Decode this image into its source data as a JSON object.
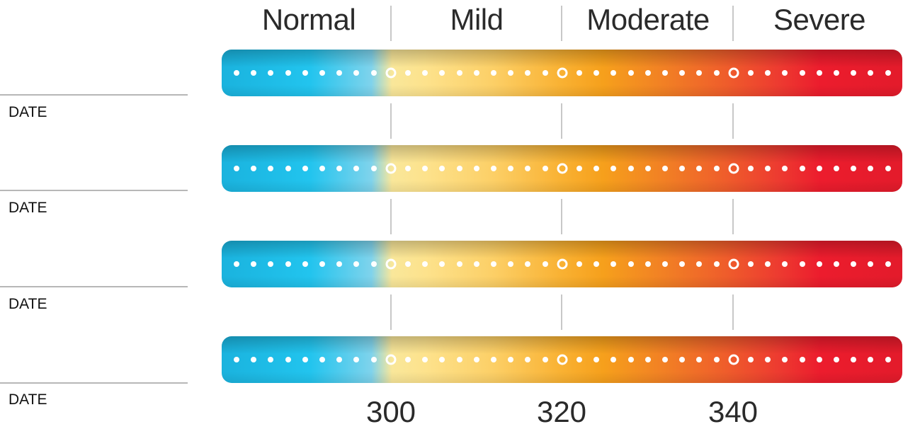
{
  "severity_scale": {
    "categories": [
      "Normal",
      "Mild",
      "Moderate",
      "Severe"
    ],
    "thresholds": [
      300,
      320,
      340
    ]
  },
  "rows": [
    {
      "label": "DATE"
    },
    {
      "label": "DATE"
    },
    {
      "label": "DATE"
    },
    {
      "label": "DATE"
    }
  ],
  "axis": {
    "ticks": [
      "300",
      "320",
      "340"
    ]
  },
  "colors": {
    "normal": "#22c4ee",
    "mild": "#fde28c",
    "moderate": "#f6a01c",
    "severe": "#ec1c2d"
  }
}
